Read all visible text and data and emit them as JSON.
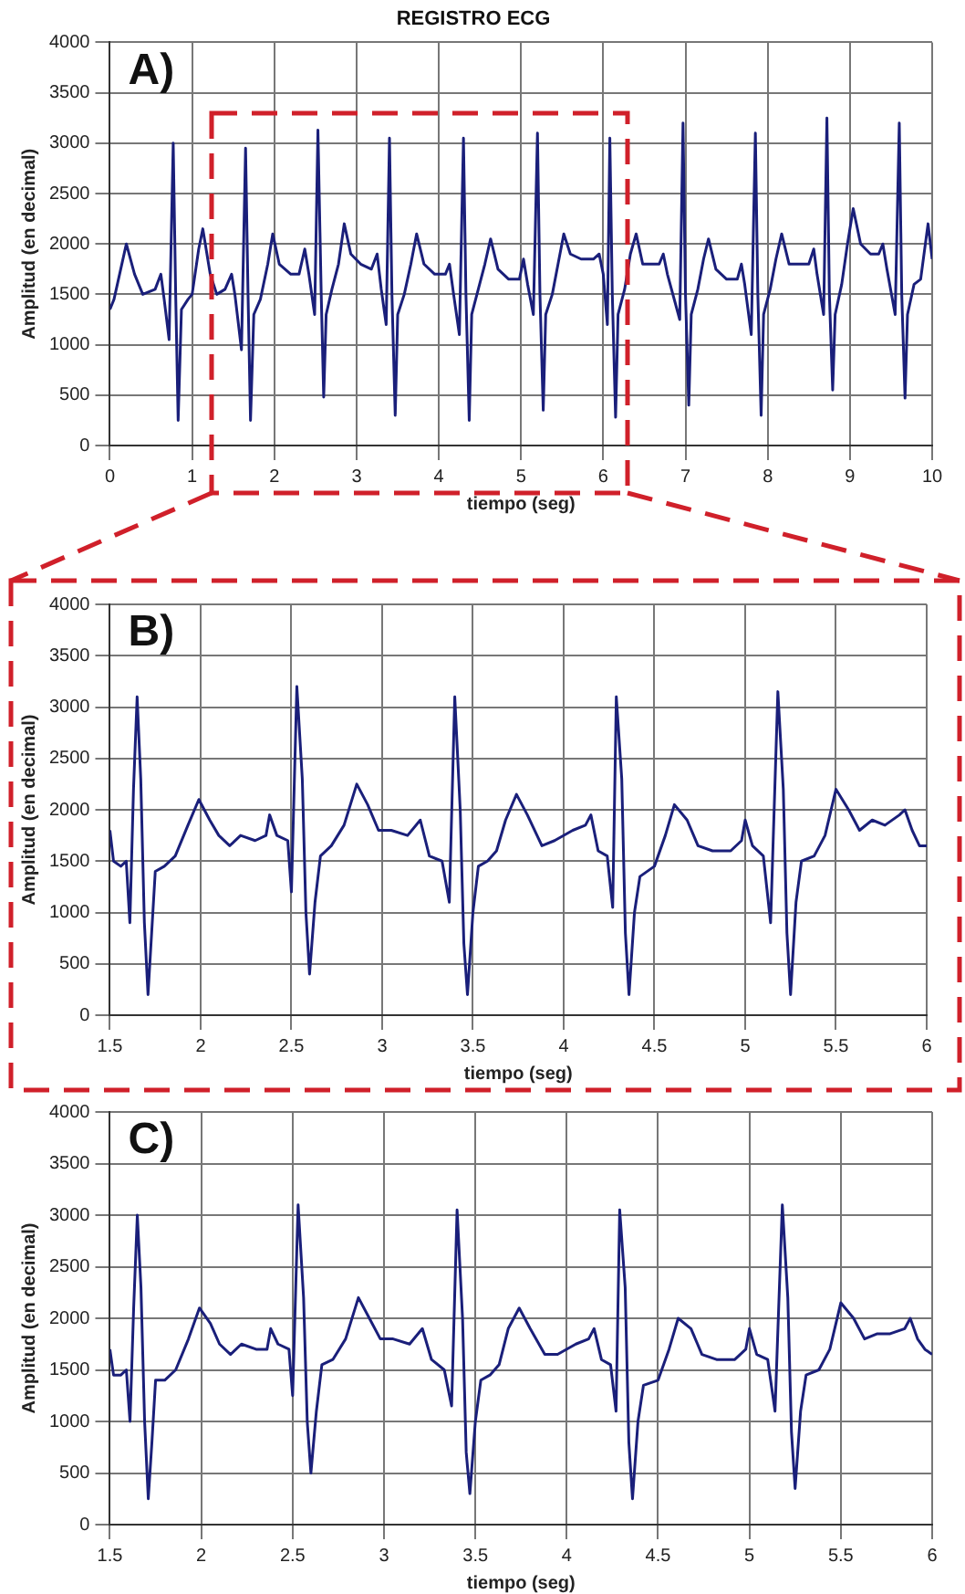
{
  "chart_data": [
    {
      "type": "line",
      "title": "REGISTRO ECG",
      "annotations": [
        "A)"
      ],
      "xlabel": "tiempo (seg)",
      "ylabel": "Amplitud (en decimal)",
      "color": "#1a1f7a",
      "grid": true,
      "xlim": [
        0,
        10
      ],
      "xticks": [
        0,
        1,
        2,
        3,
        4,
        5,
        6,
        7,
        8,
        9,
        10
      ],
      "ylim": [
        0,
        4000
      ],
      "yticks": [
        0,
        500,
        1000,
        1500,
        2000,
        2500,
        3000,
        3500,
        4000
      ],
      "x": [
        0,
        0.05,
        0.2,
        0.3,
        0.4,
        0.55,
        0.62,
        0.66,
        0.72,
        0.77,
        0.8,
        0.83,
        0.87,
        0.95,
        1.0,
        1.08,
        1.13,
        1.22,
        1.3,
        1.4,
        1.48,
        1.52,
        1.6,
        1.65,
        1.68,
        1.71,
        1.75,
        1.83,
        1.92,
        1.98,
        2.06,
        2.2,
        2.3,
        2.37,
        2.42,
        2.49,
        2.53,
        2.57,
        2.6,
        2.63,
        2.7,
        2.78,
        2.85,
        2.93,
        3.05,
        3.18,
        3.25,
        3.3,
        3.36,
        3.4,
        3.43,
        3.47,
        3.5,
        3.58,
        3.66,
        3.73,
        3.82,
        3.95,
        4.08,
        4.13,
        4.18,
        4.25,
        4.3,
        4.33,
        4.37,
        4.4,
        4.48,
        4.56,
        4.63,
        4.72,
        4.85,
        4.98,
        5.03,
        5.08,
        5.15,
        5.2,
        5.23,
        5.27,
        5.3,
        5.38,
        5.45,
        5.52,
        5.6,
        5.73,
        5.88,
        5.95,
        6.0,
        6.05,
        6.08,
        6.11,
        6.15,
        6.18,
        6.26,
        6.33,
        6.4,
        6.48,
        6.6,
        6.68,
        6.73,
        6.78,
        6.93,
        6.97,
        7.0,
        7.04,
        7.07,
        7.15,
        7.22,
        7.28,
        7.37,
        7.5,
        7.63,
        7.68,
        7.72,
        7.8,
        7.85,
        7.88,
        7.92,
        7.95,
        8.03,
        8.1,
        8.17,
        8.26,
        8.38,
        8.5,
        8.56,
        8.6,
        8.68,
        8.72,
        8.75,
        8.79,
        8.82,
        8.9,
        8.97,
        9.04,
        9.13,
        9.25,
        9.35,
        9.4,
        9.45,
        9.55,
        9.6,
        9.63,
        9.67,
        9.7,
        9.78,
        9.86,
        9.95,
        10
      ],
      "values": [
        1350,
        1450,
        2000,
        1700,
        1500,
        1550,
        1700,
        1450,
        1050,
        3000,
        1500,
        250,
        1350,
        1450,
        1500,
        1950,
        2150,
        1700,
        1500,
        1550,
        1700,
        1500,
        950,
        2950,
        1500,
        250,
        1300,
        1450,
        1800,
        2100,
        1800,
        1700,
        1700,
        1950,
        1700,
        1300,
        3130,
        1500,
        480,
        1300,
        1550,
        1800,
        2200,
        1900,
        1800,
        1750,
        1900,
        1550,
        1200,
        3050,
        1500,
        300,
        1300,
        1500,
        1800,
        2100,
        1800,
        1700,
        1700,
        1800,
        1500,
        1100,
        3050,
        1500,
        250,
        1300,
        1550,
        1800,
        2050,
        1750,
        1650,
        1650,
        1850,
        1600,
        1300,
        3100,
        1500,
        350,
        1300,
        1500,
        1800,
        2100,
        1900,
        1850,
        1850,
        1900,
        1700,
        1200,
        3050,
        1500,
        280,
        1300,
        1550,
        1900,
        2100,
        1800,
        1800,
        1800,
        1900,
        1700,
        1250,
        3200,
        1500,
        400,
        1300,
        1550,
        1850,
        2050,
        1750,
        1650,
        1650,
        1800,
        1600,
        1100,
        3100,
        1500,
        300,
        1300,
        1550,
        1850,
        2100,
        1800,
        1800,
        1800,
        1950,
        1700,
        1300,
        3250,
        1500,
        550,
        1300,
        1600,
        2000,
        2350,
        2000,
        1900,
        1900,
        2000,
        1750,
        1300,
        3200,
        1500,
        470,
        1300,
        1600,
        1650,
        2200,
        1850
      ]
    },
    {
      "type": "line",
      "annotations": [
        "B)"
      ],
      "xlabel": "tiempo (seg)",
      "ylabel": "Amplitud (en decimal)",
      "color": "#1a1f7a",
      "grid": true,
      "xlim": [
        1.5,
        6
      ],
      "xticks": [
        1.5,
        2,
        2.5,
        3,
        3.5,
        4,
        4.5,
        5,
        5.5,
        6
      ],
      "ylim": [
        0,
        4000
      ],
      "yticks": [
        0,
        500,
        1000,
        1500,
        2000,
        2500,
        3000,
        3500,
        4000
      ],
      "x": [
        1.5,
        1.52,
        1.56,
        1.59,
        1.61,
        1.63,
        1.65,
        1.67,
        1.69,
        1.71,
        1.73,
        1.75,
        1.8,
        1.86,
        1.93,
        1.99,
        2.05,
        2.1,
        2.16,
        2.22,
        2.3,
        2.36,
        2.38,
        2.42,
        2.48,
        2.5,
        2.53,
        2.56,
        2.58,
        2.6,
        2.63,
        2.66,
        2.72,
        2.79,
        2.86,
        2.92,
        2.98,
        3.05,
        3.14,
        3.21,
        3.26,
        3.33,
        3.37,
        3.4,
        3.43,
        3.45,
        3.47,
        3.5,
        3.53,
        3.58,
        3.63,
        3.68,
        3.74,
        3.8,
        3.88,
        3.95,
        4.05,
        4.12,
        4.15,
        4.19,
        4.24,
        4.27,
        4.29,
        4.32,
        4.34,
        4.36,
        4.39,
        4.42,
        4.5,
        4.56,
        4.61,
        4.68,
        4.74,
        4.82,
        4.92,
        4.98,
        5.0,
        5.04,
        5.1,
        5.14,
        5.18,
        5.21,
        5.23,
        5.25,
        5.28,
        5.31,
        5.38,
        5.44,
        5.5,
        5.57,
        5.63,
        5.7,
        5.77,
        5.85,
        5.88,
        5.92,
        5.96,
        6.0
      ],
      "values": [
        1800,
        1500,
        1450,
        1500,
        900,
        2200,
        3100,
        2300,
        900,
        200,
        800,
        1400,
        1450,
        1550,
        1850,
        2100,
        1900,
        1750,
        1650,
        1750,
        1700,
        1750,
        1950,
        1750,
        1700,
        1200,
        3200,
        2300,
        1000,
        400,
        1100,
        1550,
        1650,
        1850,
        2250,
        2050,
        1800,
        1800,
        1750,
        1900,
        1550,
        1500,
        1100,
        3100,
        2000,
        700,
        200,
        1000,
        1450,
        1500,
        1600,
        1900,
        2150,
        1950,
        1650,
        1700,
        1800,
        1850,
        1950,
        1600,
        1550,
        1050,
        3100,
        2300,
        800,
        200,
        1000,
        1350,
        1450,
        1750,
        2050,
        1900,
        1650,
        1600,
        1600,
        1700,
        1900,
        1650,
        1550,
        900,
        3150,
        2200,
        800,
        200,
        1100,
        1500,
        1550,
        1750,
        2200,
        2000,
        1800,
        1900,
        1850,
        1950,
        2000,
        1800,
        1650,
        1650
      ]
    },
    {
      "type": "line",
      "annotations": [
        "C)"
      ],
      "xlabel": "tiempo (seg)",
      "ylabel": "Amplitud (en decimal)",
      "color": "#1a1f7a",
      "grid": true,
      "xlim": [
        1.5,
        6
      ],
      "xticks": [
        1.5,
        2,
        2.5,
        3,
        3.5,
        4,
        4.5,
        5,
        5.5,
        6
      ],
      "ylim": [
        0,
        4000
      ],
      "yticks": [
        0,
        500,
        1000,
        1500,
        2000,
        2500,
        3000,
        3500,
        4000
      ],
      "x": [
        1.5,
        1.52,
        1.56,
        1.59,
        1.61,
        1.63,
        1.65,
        1.67,
        1.69,
        1.71,
        1.73,
        1.75,
        1.8,
        1.86,
        1.93,
        1.99,
        2.05,
        2.1,
        2.16,
        2.22,
        2.3,
        2.36,
        2.38,
        2.42,
        2.48,
        2.5,
        2.53,
        2.56,
        2.58,
        2.6,
        2.63,
        2.66,
        2.72,
        2.79,
        2.86,
        2.92,
        2.98,
        3.05,
        3.14,
        3.21,
        3.26,
        3.33,
        3.37,
        3.4,
        3.43,
        3.45,
        3.47,
        3.5,
        3.53,
        3.58,
        3.63,
        3.68,
        3.74,
        3.8,
        3.88,
        3.95,
        4.05,
        4.12,
        4.15,
        4.19,
        4.24,
        4.27,
        4.29,
        4.32,
        4.34,
        4.36,
        4.39,
        4.42,
        4.5,
        4.56,
        4.61,
        4.68,
        4.74,
        4.82,
        4.92,
        4.98,
        5.0,
        5.04,
        5.1,
        5.14,
        5.18,
        5.21,
        5.23,
        5.25,
        5.28,
        5.31,
        5.38,
        5.44,
        5.5,
        5.57,
        5.63,
        5.7,
        5.77,
        5.85,
        5.88,
        5.92,
        5.96,
        6.0
      ],
      "values": [
        1700,
        1450,
        1450,
        1500,
        1000,
        2100,
        3000,
        2300,
        1000,
        250,
        800,
        1400,
        1400,
        1500,
        1800,
        2100,
        1950,
        1750,
        1650,
        1750,
        1700,
        1700,
        1900,
        1750,
        1700,
        1250,
        3100,
        2200,
        1000,
        500,
        1100,
        1550,
        1600,
        1800,
        2200,
        2000,
        1800,
        1800,
        1750,
        1900,
        1600,
        1500,
        1150,
        3050,
        2000,
        700,
        300,
        1000,
        1400,
        1450,
        1550,
        1900,
        2100,
        1900,
        1650,
        1650,
        1750,
        1800,
        1900,
        1600,
        1550,
        1100,
        3050,
        2300,
        800,
        250,
        1000,
        1350,
        1400,
        1700,
        2000,
        1900,
        1650,
        1600,
        1600,
        1700,
        1900,
        1650,
        1600,
        1100,
        3100,
        2200,
        900,
        350,
        1100,
        1450,
        1500,
        1700,
        2150,
        2000,
        1800,
        1850,
        1850,
        1900,
        2000,
        1800,
        1700,
        1650
      ]
    }
  ]
}
